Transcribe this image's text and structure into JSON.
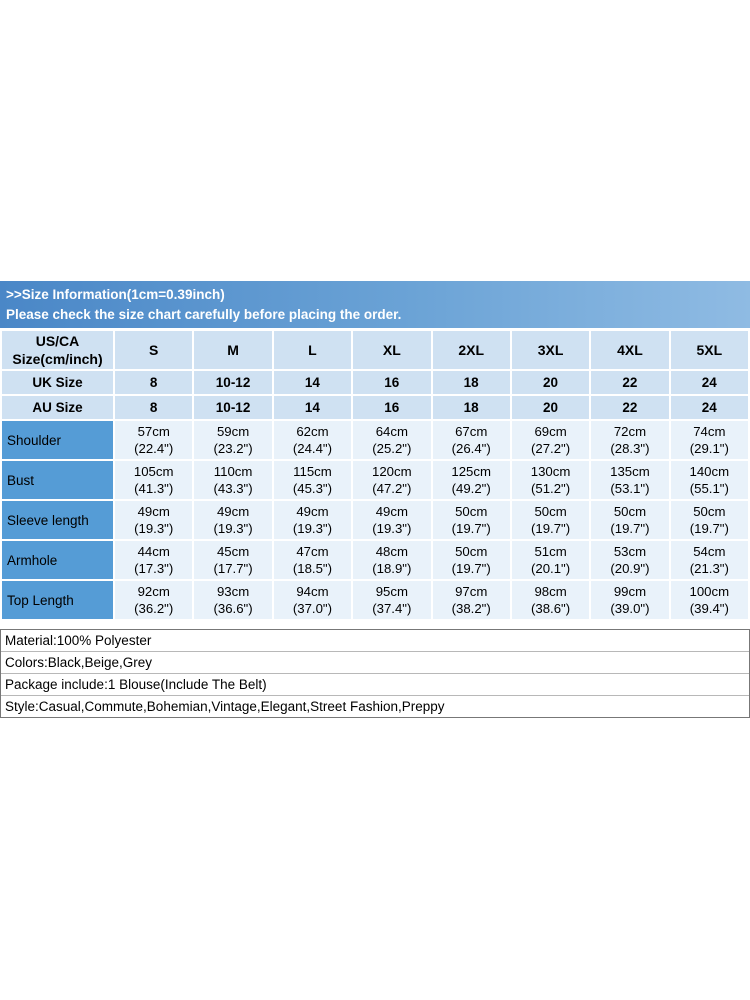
{
  "banner": {
    "line1": ">>Size Information(1cm=0.39inch)",
    "line2": "Please check the size chart carefully before placing the order."
  },
  "table": {
    "corner": {
      "line1": "US/CA",
      "line2": "Size(cm/inch)"
    },
    "sizes": [
      "S",
      "M",
      "L",
      "XL",
      "2XL",
      "3XL",
      "4XL",
      "5XL"
    ],
    "uk": {
      "label": "UK Size",
      "values": [
        "8",
        "10-12",
        "14",
        "16",
        "18",
        "20",
        "22",
        "24"
      ]
    },
    "au": {
      "label": "AU Size",
      "values": [
        "8",
        "10-12",
        "14",
        "16",
        "18",
        "20",
        "22",
        "24"
      ]
    },
    "rows": [
      {
        "label": "Shoulder",
        "cells": [
          {
            "cm": "57cm",
            "in": "(22.4\")"
          },
          {
            "cm": "59cm",
            "in": "(23.2\")"
          },
          {
            "cm": "62cm",
            "in": "(24.4\")"
          },
          {
            "cm": "64cm",
            "in": "(25.2\")"
          },
          {
            "cm": "67cm",
            "in": "(26.4\")"
          },
          {
            "cm": "69cm",
            "in": "(27.2\")"
          },
          {
            "cm": "72cm",
            "in": "(28.3\")"
          },
          {
            "cm": "74cm",
            "in": "(29.1\")"
          }
        ]
      },
      {
        "label": "Bust",
        "cells": [
          {
            "cm": "105cm",
            "in": "(41.3\")"
          },
          {
            "cm": "110cm",
            "in": "(43.3\")"
          },
          {
            "cm": "115cm",
            "in": "(45.3\")"
          },
          {
            "cm": "120cm",
            "in": "(47.2\")"
          },
          {
            "cm": "125cm",
            "in": "(49.2\")"
          },
          {
            "cm": "130cm",
            "in": "(51.2\")"
          },
          {
            "cm": "135cm",
            "in": "(53.1\")"
          },
          {
            "cm": "140cm",
            "in": "(55.1\")"
          }
        ]
      },
      {
        "label": "Sleeve length",
        "cells": [
          {
            "cm": "49cm",
            "in": "(19.3\")"
          },
          {
            "cm": "49cm",
            "in": "(19.3\")"
          },
          {
            "cm": "49cm",
            "in": "(19.3\")"
          },
          {
            "cm": "49cm",
            "in": "(19.3\")"
          },
          {
            "cm": "50cm",
            "in": "(19.7\")"
          },
          {
            "cm": "50cm",
            "in": "(19.7\")"
          },
          {
            "cm": "50cm",
            "in": "(19.7\")"
          },
          {
            "cm": "50cm",
            "in": "(19.7\")"
          }
        ]
      },
      {
        "label": "Armhole",
        "cells": [
          {
            "cm": "44cm",
            "in": "(17.3\")"
          },
          {
            "cm": "45cm",
            "in": "(17.7\")"
          },
          {
            "cm": "47cm",
            "in": "(18.5\")"
          },
          {
            "cm": "48cm",
            "in": "(18.9\")"
          },
          {
            "cm": "50cm",
            "in": "(19.7\")"
          },
          {
            "cm": "51cm",
            "in": "(20.1\")"
          },
          {
            "cm": "53cm",
            "in": "(20.9\")"
          },
          {
            "cm": "54cm",
            "in": "(21.3\")"
          }
        ]
      },
      {
        "label": "Top Length",
        "cells": [
          {
            "cm": "92cm",
            "in": "(36.2\")"
          },
          {
            "cm": "93cm",
            "in": "(36.6\")"
          },
          {
            "cm": "94cm",
            "in": "(37.0\")"
          },
          {
            "cm": "95cm",
            "in": "(37.4\")"
          },
          {
            "cm": "97cm",
            "in": "(38.2\")"
          },
          {
            "cm": "98cm",
            "in": "(38.6\")"
          },
          {
            "cm": "99cm",
            "in": "(39.0\")"
          },
          {
            "cm": "100cm",
            "in": "(39.4\")"
          }
        ]
      }
    ]
  },
  "details": {
    "lines": [
      "Material:100% Polyester",
      "Colors:Black,Beige,Grey",
      "Package include:1 Blouse(Include The Belt)",
      "Style:Casual,Commute,Bohemian,Vintage,Elegant,Street Fashion,Preppy"
    ]
  },
  "colors": {
    "banner_blue_start": "#4a87c7",
    "banner_blue_end": "#8fbbe3",
    "header_row_bg": "#cfe1f2",
    "label_column_bg": "#559cd6",
    "data_cell_bg": "#e9f2fa"
  }
}
